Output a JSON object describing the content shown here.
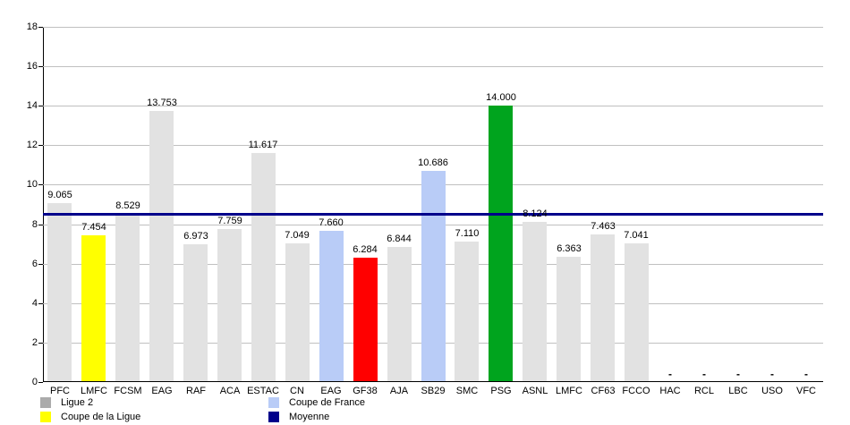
{
  "chart_data": {
    "type": "bar",
    "title": "",
    "xlabel": "",
    "ylabel": "",
    "ylim": [
      0,
      18
    ],
    "ytick_step": 2,
    "yticks": [
      "0",
      "2",
      "4",
      "6",
      "8",
      "10",
      "12",
      "14",
      "16",
      "18"
    ],
    "grid": true,
    "categories": [
      "PFC",
      "LMFC",
      "FCSM",
      "EAG",
      "RAF",
      "ACA",
      "ESTAC",
      "CN",
      "EAG",
      "GF38",
      "AJA",
      "SB29",
      "SMC",
      "PSG",
      "ASNL",
      "LMFC",
      "CF63",
      "FCCO",
      "HAC",
      "RCL",
      "LBC",
      "USO",
      "VFC"
    ],
    "bars": [
      {
        "label": "PFC",
        "value": 9.065,
        "display": "9.065",
        "color": "#e2e2e2"
      },
      {
        "label": "LMFC",
        "value": 7.454,
        "display": "7.454",
        "color": "#ffff00"
      },
      {
        "label": "FCSM",
        "value": 8.529,
        "display": "8.529",
        "color": "#e2e2e2"
      },
      {
        "label": "EAG",
        "value": 13.753,
        "display": "13.753",
        "color": "#e2e2e2"
      },
      {
        "label": "RAF",
        "value": 6.973,
        "display": "6.973",
        "color": "#e2e2e2"
      },
      {
        "label": "ACA",
        "value": 7.759,
        "display": "7.759",
        "color": "#e2e2e2"
      },
      {
        "label": "ESTAC",
        "value": 11.617,
        "display": "11.617",
        "color": "#e2e2e2"
      },
      {
        "label": "CN",
        "value": 7.049,
        "display": "7.049",
        "color": "#e2e2e2"
      },
      {
        "label": "EAG",
        "value": 7.66,
        "display": "7.660",
        "color": "#b9ccf7"
      },
      {
        "label": "GF38",
        "value": 6.284,
        "display": "6.284",
        "color": "#ff0000"
      },
      {
        "label": "AJA",
        "value": 6.844,
        "display": "6.844",
        "color": "#e2e2e2"
      },
      {
        "label": "SB29",
        "value": 10.686,
        "display": "10.686",
        "color": "#b9ccf7"
      },
      {
        "label": "SMC",
        "value": 7.11,
        "display": "7.110",
        "color": "#e2e2e2"
      },
      {
        "label": "PSG",
        "value": 14.0,
        "display": "14.000",
        "color": "#00a41e"
      },
      {
        "label": "ASNL",
        "value": 8.124,
        "display": "8.124",
        "color": "#e2e2e2"
      },
      {
        "label": "LMFC",
        "value": 6.363,
        "display": "6.363",
        "color": "#e2e2e2"
      },
      {
        "label": "CF63",
        "value": 7.463,
        "display": "7.463",
        "color": "#e2e2e2"
      },
      {
        "label": "FCCO",
        "value": 7.041,
        "display": "7.041",
        "color": "#e2e2e2"
      },
      {
        "label": "HAC",
        "value": null,
        "display": "-",
        "color": null
      },
      {
        "label": "RCL",
        "value": null,
        "display": "-",
        "color": null
      },
      {
        "label": "LBC",
        "value": null,
        "display": "-",
        "color": null
      },
      {
        "label": "USO",
        "value": null,
        "display": "-",
        "color": null
      },
      {
        "label": "VFC",
        "value": null,
        "display": "-",
        "color": null
      }
    ],
    "average_line": {
      "name": "Moyenne",
      "value": 8.543,
      "color": "#00008b"
    },
    "legend": {
      "position": "bottom",
      "columns": [
        [
          {
            "label": "Ligue 2",
            "color": "#ababab"
          },
          {
            "label": "Coupe de la Ligue",
            "color": "#ffff00"
          }
        ],
        [
          {
            "label": "Coupe de France",
            "color": "#b9ccf7"
          },
          {
            "label": "Moyenne",
            "color": "#00008b"
          }
        ]
      ]
    },
    "colors": {
      "grid": "#c0c0c0",
      "axis": "#000000",
      "background": "#ffffff"
    }
  }
}
